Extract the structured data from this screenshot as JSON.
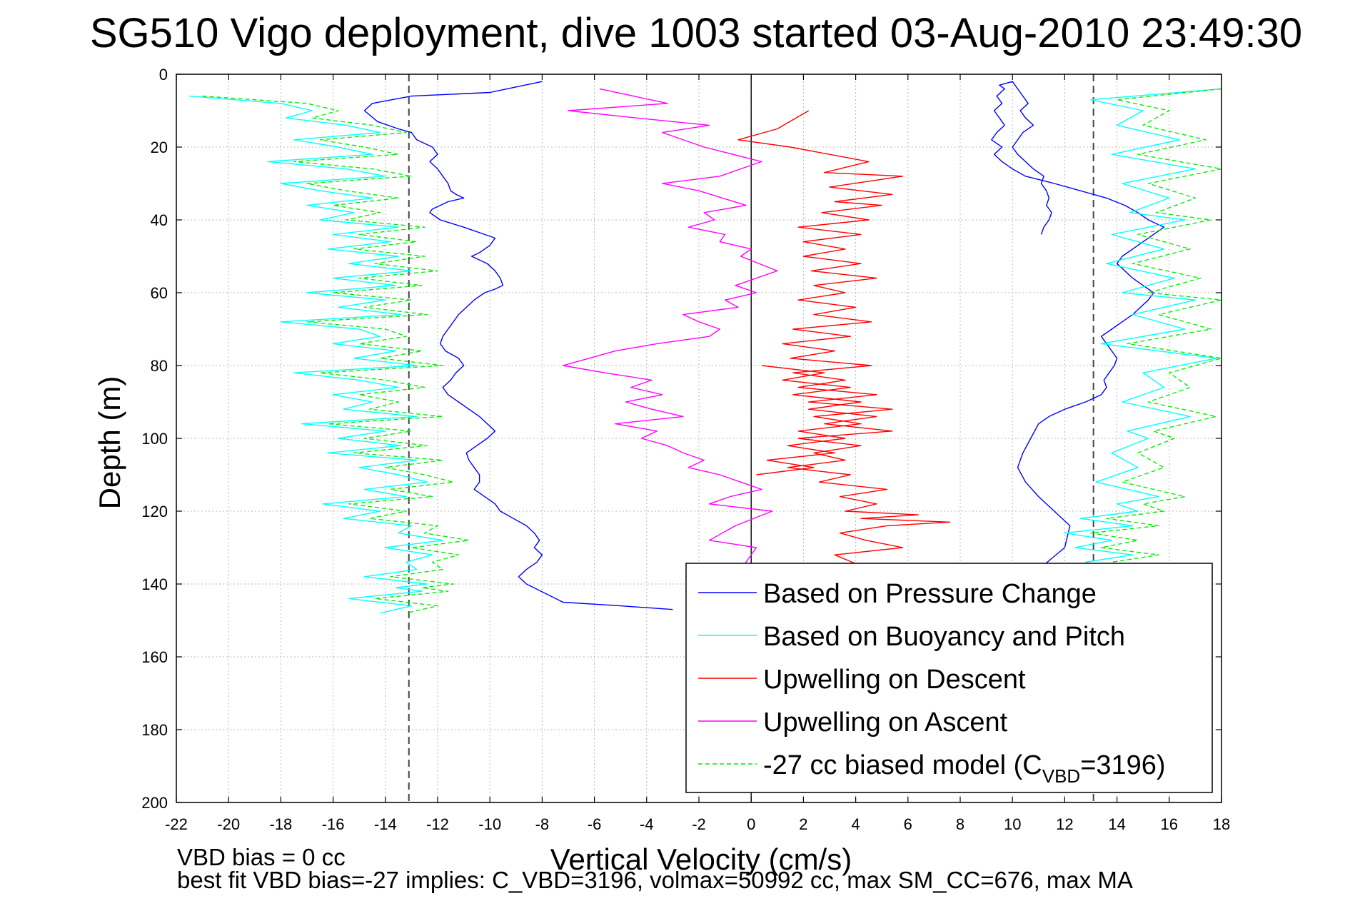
{
  "chart_data": {
    "type": "line",
    "title": "SG510 Vigo deployment, dive 1003 started 03-Aug-2010 23:49:30",
    "xlabel": "Vertical Velocity (cm/s)",
    "ylabel": "Depth (m)",
    "xlim": [
      -22,
      18
    ],
    "ylim": [
      0,
      200
    ],
    "y_reversed": true,
    "grid": true,
    "x_ticks": [
      "-22",
      "-20",
      "-18",
      "-16",
      "-14",
      "-12",
      "-10",
      "-8",
      "-6",
      "-4",
      "-2",
      "0",
      "2",
      "4",
      "6",
      "8",
      "10",
      "12",
      "14",
      "16",
      "18"
    ],
    "y_ticks": [
      "0",
      "20",
      "40",
      "60",
      "80",
      "100",
      "120",
      "140",
      "160",
      "180",
      "200"
    ],
    "reference_lines": [
      {
        "x": -13.1,
        "style": "dashed",
        "color": "#444444"
      },
      {
        "x": 13.1,
        "style": "dashed",
        "color": "#444444"
      },
      {
        "x": 0,
        "style": "solid",
        "color": "#000000"
      }
    ],
    "legend_position": "bottom-right",
    "legend": [
      {
        "label": "Based on Pressure Change",
        "color": "#0000ff",
        "style": "solid"
      },
      {
        "label": "Based on Buoyancy and Pitch",
        "color": "#00ffff",
        "style": "solid"
      },
      {
        "label": "Upwelling on Descent",
        "color": "#ff0000",
        "style": "solid"
      },
      {
        "label": "Upwelling on Ascent",
        "color": "#ff00ff",
        "style": "solid"
      },
      {
        "label_prefix": "-27 cc biased model (C",
        "label_sub": "VBD",
        "label_suffix": "=3196)",
        "color": "#00ee00",
        "style": "dashed"
      }
    ],
    "series": [
      {
        "name": "Based on Pressure Change",
        "color": "#0000ff",
        "x": [
          -8,
          -10,
          -13,
          -14.5,
          -14.8,
          -14.3,
          -13.5,
          -13,
          -12.8,
          -12.2,
          -12,
          -12.3,
          -12,
          -11.8,
          -11.6,
          -11.5,
          -11.3,
          -11,
          -11.6,
          -11.9,
          -12.2,
          -12.3,
          -11.9,
          -11,
          -10.2,
          -9.8,
          -10,
          -10.4,
          -10.7,
          -10.1,
          -9.8,
          -9.6,
          -9.5,
          -9.8,
          -10.2,
          -10.6,
          -10.9,
          -11.2,
          -11.4,
          -11.6,
          -11.8,
          -11.9,
          -11.7,
          -11.2,
          -11,
          -11.3,
          -11.5,
          -11.8,
          -11.6,
          -11.2,
          -10.8,
          -10.4,
          -10.1,
          -9.8,
          -10.1,
          -10.5,
          -10.9,
          -10.8,
          -10.6,
          -10.4,
          -10.4,
          -10.6,
          -10.2,
          -9.8,
          -9.6,
          -9.1,
          -8.6,
          -8.3,
          -8.1,
          -8.3,
          -8.0,
          -8.2,
          -8.6,
          -8.9,
          -8.6,
          -7.2,
          -5,
          -3
        ],
        "y": [
          2,
          5,
          6,
          8,
          10,
          13,
          15,
          16,
          18,
          20,
          22,
          24,
          26,
          28,
          30,
          32,
          33,
          34,
          35,
          36,
          37,
          38,
          40,
          42,
          44,
          45,
          47,
          49,
          50,
          52,
          54,
          56,
          58,
          59,
          60,
          62,
          64,
          66,
          68,
          70,
          72,
          74,
          76,
          78,
          80,
          82,
          84,
          86,
          88,
          90,
          92,
          94,
          96,
          98,
          100,
          102,
          104,
          106,
          108,
          110,
          112,
          114,
          116,
          118,
          120,
          122,
          124,
          126,
          128,
          130,
          132,
          134,
          136,
          138,
          140,
          145,
          146,
          147
        ]
      },
      {
        "name": "Based on Pressure Change (ascent)",
        "color": "#0000ff",
        "x": [
          -2,
          -1,
          0,
          2,
          4,
          6,
          8,
          10,
          11,
          12,
          12.2,
          11.6,
          11,
          10.5,
          10.2,
          10.4,
          10.7,
          11,
          11.4,
          12,
          12.8,
          13.4,
          13.6,
          13.5,
          13.7,
          13.9,
          14,
          13.8,
          13.6,
          13.4,
          13.8,
          14.2,
          14.6,
          14.9,
          15.2,
          15.4,
          15,
          14.6,
          14.3,
          14,
          14.2,
          14.6,
          15,
          15.4,
          15.8,
          15.2,
          14.8,
          14.3,
          13.6,
          12.6,
          11.6,
          10.5,
          10,
          9.6,
          9.3,
          9.6,
          9.2,
          9.4,
          9.7,
          9.5,
          9.3,
          9.6,
          9.4,
          9.7,
          9.5,
          10,
          10.2,
          10.4,
          10.6,
          10.3,
          10.5,
          10.8,
          10.4,
          10.2,
          10,
          10.2,
          10.5,
          10.8,
          11.2,
          11.1,
          11.3,
          11.4,
          11.3,
          11.5,
          11.4,
          11.2,
          11.1
        ],
        "y": [
          150,
          149,
          148,
          147,
          146,
          145,
          144,
          140,
          136,
          130,
          124,
          120,
          116,
          112,
          108,
          104,
          100,
          96,
          94,
          92,
          90,
          88,
          86,
          84,
          82,
          80,
          78,
          76,
          74,
          72,
          70,
          68,
          66,
          64,
          62,
          60,
          58,
          56,
          54,
          52,
          50,
          48,
          46,
          44,
          42,
          40,
          38,
          36,
          34,
          32,
          30,
          28,
          26,
          24,
          22,
          20,
          18,
          16,
          14,
          12,
          10,
          8,
          6,
          4,
          3,
          2,
          4,
          6,
          8,
          10,
          12,
          14,
          16,
          18,
          20,
          22,
          24,
          26,
          28,
          30,
          32,
          34,
          36,
          38,
          40,
          42,
          44
        ]
      },
      {
        "name": "Based on Buoyancy and Pitch",
        "color": "#00ffff",
        "x": [
          -21.5,
          -18,
          -16.8,
          -17.8,
          -15.5,
          -14.2,
          -17.5,
          -15.8,
          -14.5,
          -18.5,
          -15.5,
          -14,
          -18,
          -16.5,
          -14.5,
          -17,
          -15.2,
          -16.5,
          -13.5,
          -16,
          -13.8,
          -16.2,
          -13.5,
          -15.4,
          -13,
          -16,
          -13.6,
          -17,
          -14,
          -15.8,
          -13.4,
          -18,
          -15,
          -14.2,
          -16,
          -13.6,
          -15.2,
          -12.8,
          -17.5,
          -15,
          -13.5,
          -16,
          -14.5,
          -15.6,
          -12.8,
          -17.2,
          -14,
          -15.8,
          -13.4,
          -16.2,
          -12.8,
          -15,
          -13.5,
          -12.4,
          -14.8,
          -13.2,
          -16.4,
          -14.2,
          -15.6,
          -13,
          -13.5,
          -11.8,
          -14,
          -12.2,
          -13.2,
          -12.8,
          -14.8,
          -12.4,
          -13.6,
          -12.6,
          -15.4,
          -13,
          -14.2
        ],
        "y": [
          6,
          8,
          10,
          12,
          14,
          16,
          18,
          20,
          22,
          24,
          26,
          28,
          30,
          32,
          34,
          36,
          38,
          40,
          42,
          44,
          46,
          48,
          50,
          52,
          54,
          56,
          58,
          60,
          62,
          64,
          66,
          68,
          70,
          72,
          74,
          76,
          78,
          80,
          82,
          84,
          86,
          88,
          90,
          92,
          94,
          96,
          98,
          100,
          102,
          104,
          106,
          108,
          110,
          112,
          114,
          116,
          118,
          120,
          122,
          124,
          126,
          128,
          130,
          132,
          134,
          136,
          138,
          140,
          141,
          142,
          144,
          146,
          148
        ]
      },
      {
        "name": "Based on Buoyancy and Pitch (ascent)",
        "color": "#00ffff",
        "x": [
          18,
          13,
          15,
          14,
          16.4,
          13.8,
          17,
          14.2,
          16,
          14.5,
          16.6,
          13.8,
          15.8,
          13.6,
          16.2,
          14.2,
          17,
          14.6,
          16.6,
          13.4,
          17.8,
          15,
          15.8,
          14.2,
          16.8,
          14.4,
          15.2,
          13.8,
          14.8,
          13.2,
          15.6,
          14,
          14.8,
          12.6,
          14.6,
          12,
          13.8,
          12.4,
          14.6,
          12.8,
          13.6,
          11.6,
          13,
          12.2,
          14.4
        ],
        "y": [
          4,
          7,
          10,
          14,
          18,
          22,
          26,
          30,
          34,
          38,
          40,
          44,
          48,
          52,
          56,
          60,
          62,
          66,
          70,
          74,
          78,
          82,
          86,
          90,
          94,
          98,
          100,
          104,
          108,
          112,
          116,
          118,
          120,
          122,
          124,
          126,
          128,
          130,
          132,
          134,
          136,
          138,
          140,
          142,
          145
        ]
      },
      {
        "name": "Upwelling on Descent",
        "color": "#ff0000",
        "x": [
          2.2,
          1,
          -0.5,
          1.5,
          3,
          4.5,
          2.8,
          5.8,
          3,
          5.4,
          3.2,
          5,
          2.7,
          4.5,
          1.8,
          4.2,
          2,
          3.6,
          2,
          4.2,
          2.3,
          4.8,
          2.4,
          3.6,
          1.8,
          4,
          2.4,
          4.6,
          1.6,
          3.8,
          1.2,
          3.2,
          1.5,
          4.6,
          1.6,
          3.6,
          1.8,
          4.8,
          2.2,
          5.4,
          2.4,
          4.2,
          1.8,
          3.6,
          1.4,
          3.2,
          0.6,
          2.4,
          0.2
        ],
        "y": [
          10,
          15,
          18,
          20,
          22,
          24,
          27,
          28,
          31,
          33,
          35,
          36,
          38,
          40,
          42,
          44,
          46,
          48,
          50,
          52,
          54,
          56,
          58,
          60,
          62,
          64,
          66,
          68,
          70,
          72,
          74,
          76,
          78,
          80,
          82,
          84,
          86,
          88,
          90,
          92,
          94,
          96,
          98,
          100,
          102,
          104,
          106,
          108,
          110
        ]
      },
      {
        "name": "Upwelling on Descent (deep)",
        "color": "#ff0000",
        "x": [
          0.4,
          2.8,
          1.2,
          3.8,
          1.6,
          4.2,
          2.2,
          4.8,
          2.8,
          5.4,
          1.8,
          4.2,
          2.4,
          3.6,
          1.4,
          3.8,
          2.6,
          5.2,
          3.4,
          4.8,
          3.6,
          6.4,
          4.2,
          7.6,
          5.2,
          3.4,
          4.4,
          5.8,
          3.2,
          4.2,
          3.6
        ],
        "y": [
          80,
          82,
          84,
          86,
          88,
          90,
          92,
          94,
          96,
          98,
          100,
          102,
          104,
          106,
          108,
          110,
          112,
          114,
          116,
          118,
          120,
          121,
          122,
          123,
          124,
          126,
          128,
          130,
          132,
          135,
          138
        ]
      },
      {
        "name": "Upwelling on Ascent",
        "color": "#ff00ff",
        "x": [
          -5.8,
          -3.2,
          -7,
          -4.4,
          -1.6,
          -3.4,
          -1.8,
          0.4,
          -1.2,
          -3.4,
          -2,
          -0.2,
          -1.8,
          -1.4,
          -2.4,
          -1,
          -1.2,
          0,
          -0.4,
          1,
          -0.6,
          0.2,
          -1,
          -0.5,
          -2.6,
          -2,
          -1.2,
          -1.6,
          -3.6,
          -5.2,
          -6.2,
          -7.2,
          -5.6,
          -3.8,
          -4.6,
          -3.4,
          -4.8,
          -3.8,
          -2.6,
          -5.2,
          -3.6,
          -4.2,
          -3.2,
          -2.6,
          -1.8,
          -2.4,
          -1.2,
          -0.4,
          0.4,
          -0.8,
          -1.6,
          0.8,
          -0.6,
          -1.6,
          0.2,
          -0.2,
          -0.4
        ],
        "y": [
          4,
          8,
          10,
          12,
          14,
          16,
          20,
          24,
          28,
          30,
          32,
          36,
          38,
          40,
          42,
          44,
          46,
          48,
          50,
          54,
          58,
          60,
          62,
          64,
          66,
          68,
          70,
          72,
          74,
          76,
          78,
          80,
          82,
          84,
          86,
          88,
          90,
          92,
          94,
          96,
          98,
          100,
          102,
          104,
          106,
          108,
          110,
          112,
          114,
          116,
          118,
          120,
          124,
          128,
          130,
          134,
          137
        ]
      },
      {
        "name": "-27 cc biased model (CVBD=3196)",
        "color": "#00ee00",
        "x": [
          -21,
          -17,
          -15.8,
          -16.8,
          -14.5,
          -13.2,
          -16.5,
          -14.8,
          -13.5,
          -17.5,
          -14.5,
          -13,
          -17,
          -15.5,
          -13.5,
          -16,
          -14.2,
          -15.5,
          -12.5,
          -15,
          -12.8,
          -15.2,
          -12.5,
          -14.4,
          -12,
          -15,
          -12.6,
          -16,
          -13,
          -14.8,
          -12.4,
          -17,
          -14,
          -13.2,
          -15,
          -12.6,
          -14.2,
          -11.8,
          -16.5,
          -14,
          -12.5,
          -15,
          -13.5,
          -14.6,
          -11.8,
          -16.2,
          -13,
          -14.8,
          -12.4,
          -15.2,
          -11.8,
          -14,
          -12.5,
          -11.4,
          -13.8,
          -12.2,
          -15.4,
          -13.2,
          -14.6,
          -12,
          -12.5,
          -10.8,
          -13,
          -11.2,
          -12.2,
          -11.8,
          -13.8,
          -11.4,
          -12.6,
          -11.6,
          -14.4,
          -12,
          -13.2
        ],
        "y": [
          6,
          8,
          10,
          12,
          14,
          16,
          18,
          20,
          22,
          24,
          26,
          28,
          30,
          32,
          34,
          36,
          38,
          40,
          42,
          44,
          46,
          48,
          50,
          52,
          54,
          56,
          58,
          60,
          62,
          64,
          66,
          68,
          70,
          72,
          74,
          76,
          78,
          80,
          82,
          84,
          86,
          88,
          90,
          92,
          94,
          96,
          98,
          100,
          102,
          104,
          106,
          108,
          110,
          112,
          114,
          116,
          118,
          120,
          122,
          124,
          126,
          128,
          130,
          132,
          134,
          136,
          138,
          140,
          141,
          142,
          144,
          146,
          148
        ]
      },
      {
        "name": "-27 cc biased model (CVBD=3196) (ascent)",
        "color": "#00ee00",
        "x": [
          18,
          14,
          16,
          15,
          17.4,
          14.8,
          18,
          15.2,
          17,
          15.5,
          17.6,
          14.8,
          16.8,
          14.6,
          17.2,
          15.2,
          18,
          15.6,
          17.6,
          14.4,
          18,
          16,
          16.8,
          15.2,
          17.8,
          15.4,
          16.2,
          14.8,
          15.8,
          14.2,
          16.6,
          15,
          15.8,
          13.6,
          15.6,
          13,
          14.8,
          13.4,
          15.6,
          13.8,
          14.6,
          12.6,
          14,
          13.2,
          15.4
        ],
        "y": [
          4,
          7,
          10,
          14,
          18,
          22,
          26,
          30,
          34,
          38,
          40,
          44,
          48,
          52,
          56,
          60,
          62,
          66,
          70,
          74,
          78,
          82,
          86,
          90,
          94,
          98,
          100,
          104,
          108,
          112,
          116,
          118,
          120,
          122,
          124,
          126,
          128,
          130,
          132,
          134,
          136,
          138,
          140,
          142,
          145
        ]
      }
    ]
  },
  "footer": {
    "line1": "VBD bias = 0 cc",
    "line2": "best fit VBD bias=-27 implies: C_VBD=3196, volmax=50992 cc, max SM_CC=676, max MA"
  }
}
